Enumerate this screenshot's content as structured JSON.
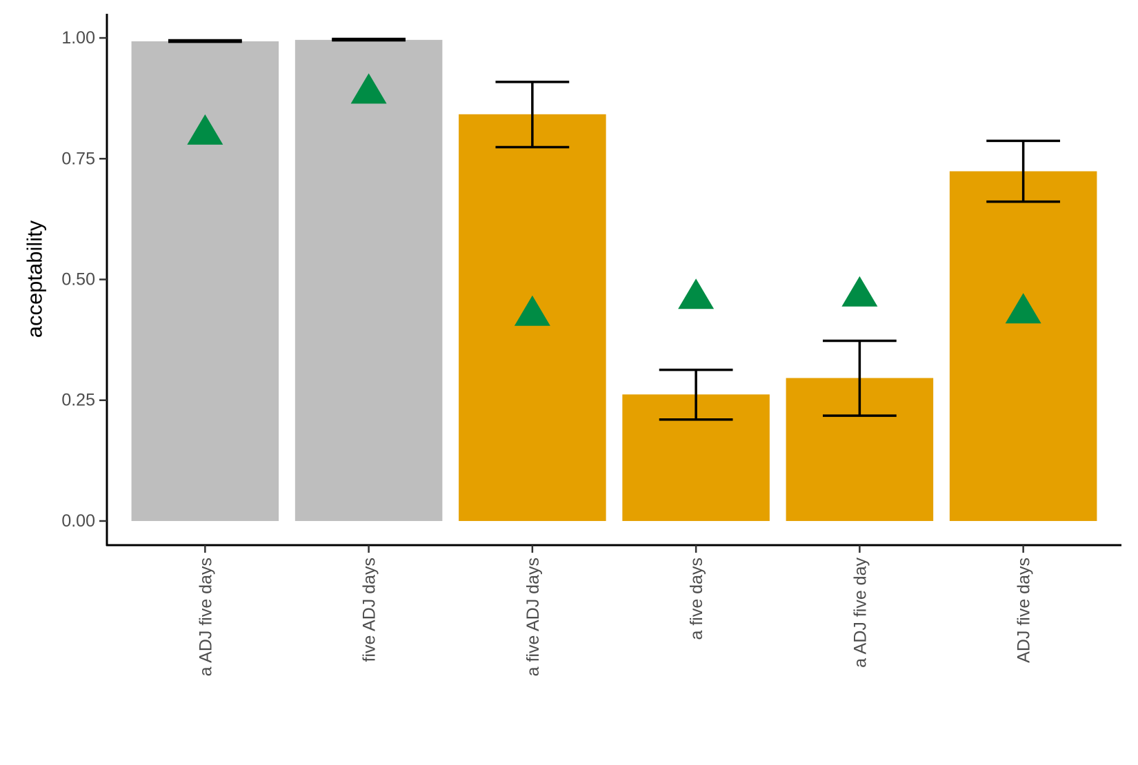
{
  "chart_data": {
    "type": "bar",
    "title": "",
    "xlabel": "",
    "ylabel": "acceptability",
    "ylim": [
      -0.05,
      1.05
    ],
    "yticks": [
      0,
      0.25,
      0.5,
      0.75,
      1.0
    ],
    "ytick_labels": [
      "0.00",
      "0.25",
      "0.50",
      "0.75",
      "1.00"
    ],
    "grid": false,
    "categories": [
      "a ADJ five days",
      "five ADJ days",
      "a five ADJ days",
      "a five days",
      "a ADJ five day",
      "ADJ five days"
    ],
    "values": [
      0.993,
      0.996,
      0.842,
      0.262,
      0.296,
      0.724
    ],
    "error_low": [
      0.992,
      0.995,
      0.774,
      0.21,
      0.218,
      0.661
    ],
    "error_high": [
      0.995,
      0.998,
      0.909,
      0.313,
      0.373,
      0.787
    ],
    "bar_colors": [
      "#bebebe",
      "#bebebe",
      "#e5a000",
      "#e5a000",
      "#e5a000",
      "#e5a000"
    ],
    "markers": {
      "shape": "triangle",
      "color": "#008c45",
      "values": [
        0.8,
        0.885,
        0.425,
        0.46,
        0.465,
        0.43
      ]
    },
    "error_bar_color": "#000000"
  }
}
